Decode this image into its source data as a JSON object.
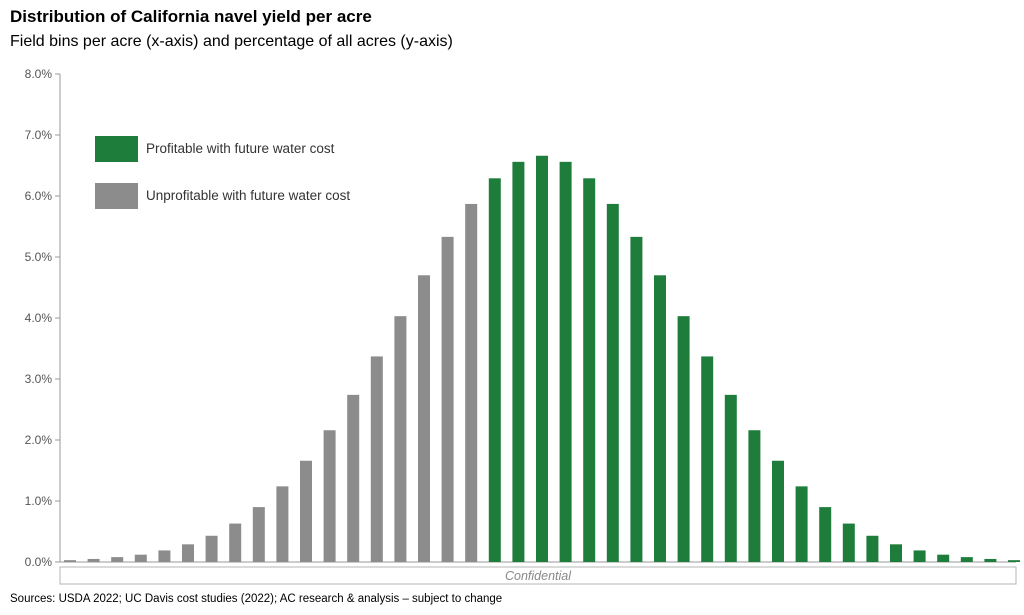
{
  "chart_data": {
    "type": "bar",
    "title": "Distribution of California navel yield per acre",
    "subtitle": "Field bins per acre (x-axis) and percentage of all acres (y-axis)",
    "ylim": [
      0,
      8
    ],
    "yticks": [
      "0.0%",
      "1.0%",
      "2.0%",
      "3.0%",
      "4.0%",
      "5.0%",
      "6.0%",
      "7.0%",
      "8.0%"
    ],
    "grid": false,
    "legend_position": "top-left",
    "series": [
      {
        "name": "Unprofitable with future water cost",
        "color": "#8c8c8c",
        "values": [
          0.03,
          0.05,
          0.08,
          0.12,
          0.19,
          0.29,
          0.43,
          0.63,
          0.9,
          1.24,
          1.66,
          2.16,
          2.74,
          3.37,
          4.03,
          4.7,
          5.33,
          5.87
        ]
      },
      {
        "name": "Profitable with future water cost",
        "color": "#1f7d3c",
        "values": [
          6.29,
          6.56,
          6.66,
          6.56,
          6.29,
          5.87,
          5.33,
          4.7,
          4.03,
          3.37,
          2.74,
          2.16,
          1.66,
          1.24,
          0.9,
          0.63,
          0.43,
          0.29,
          0.19,
          0.12,
          0.08,
          0.05,
          0.03
        ]
      }
    ]
  },
  "watermark": "Confidential",
  "source": "Sources: USDA 2022; UC Davis cost studies (2022); AC research & analysis – subject to change"
}
